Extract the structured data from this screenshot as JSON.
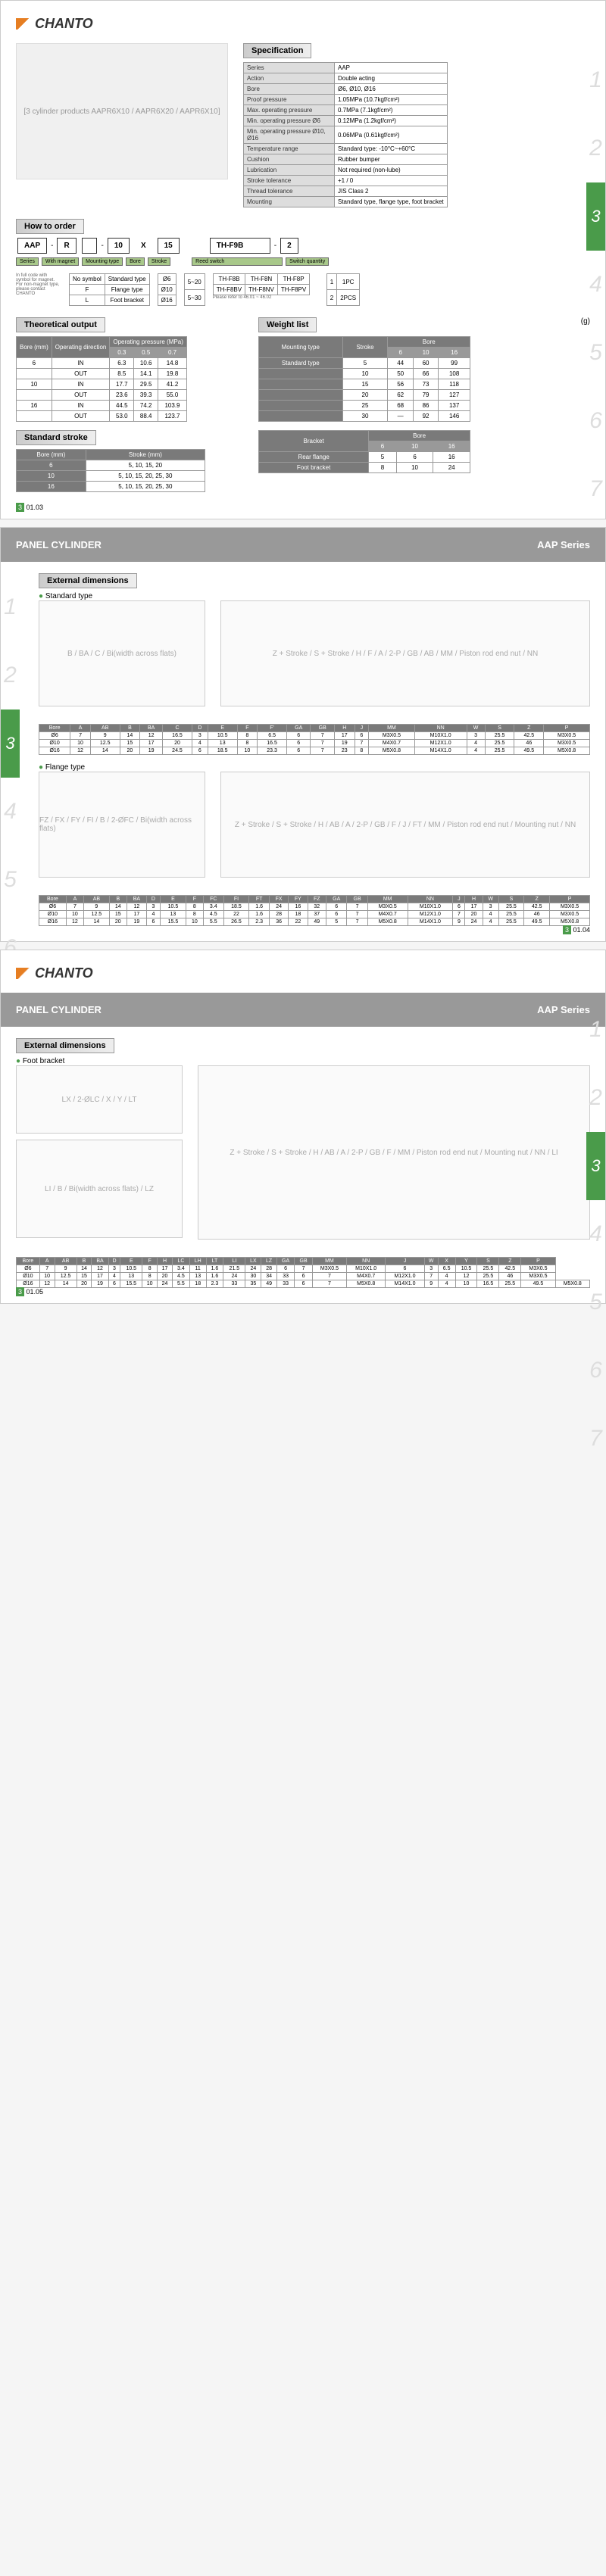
{
  "logo": "CHANTO",
  "panel_header": {
    "title": "PANEL CYLINDER",
    "series": "AAP Series"
  },
  "spec": {
    "title": "Specification",
    "rows": [
      [
        "Series",
        "AAP"
      ],
      [
        "Action",
        "Double acting"
      ],
      [
        "Bore",
        "Ø6, Ø10, Ø16"
      ],
      [
        "Proof pressure",
        "1.05MPa (10.7kgf/cm²)"
      ],
      [
        "Max. operating pressure",
        "0.7MPa (7.1kgf/cm²)"
      ],
      [
        "Min. operating pressure Ø6",
        "0.12MPa (1.2kgf/cm²)"
      ],
      [
        "Min. operating pressure Ø10, Ø16",
        "0.06MPa (0.61kgf/cm²)"
      ],
      [
        "Temperature range",
        "Standard type: -10°C~+60°C"
      ],
      [
        "Cushion",
        "Rubber bumper"
      ],
      [
        "Lubrication",
        "Not required (non-lube)"
      ],
      [
        "Stroke tolerance",
        "+1 / 0"
      ],
      [
        "Thread tolerance",
        "JIS Class 2"
      ],
      [
        "Mounting",
        "Standard type, flange type, foot bracket"
      ]
    ]
  },
  "order": {
    "title": "How to order",
    "parts": [
      "AAP",
      "R",
      "",
      "10",
      "X",
      "15",
      "",
      "TH-F9B",
      "",
      "2"
    ],
    "labels": [
      "Series",
      "With magnet",
      "Mounting type",
      "Bore",
      "Stroke",
      "Reed switch",
      "Switch quantity"
    ],
    "magnet_note": "In full code with symbol for magnet. For non-magnet type, please contact CHANTO",
    "mounting_opts": [
      [
        "No symbol",
        "Standard type"
      ],
      [
        "F",
        "Flange type"
      ],
      [
        "L",
        "Foot bracket"
      ]
    ],
    "bore_opts": [
      "Ø6",
      "Ø10",
      "Ø16"
    ],
    "stroke_opts": [
      "5~20",
      "5~30"
    ],
    "reed_opts": [
      "TH-F8B",
      "TH-F8N",
      "TH-F8P",
      "TH-F8BV",
      "TH-F8NV",
      "TH-F8PV"
    ],
    "reed_note": "Please refer to 46.01 ~ 46.02",
    "qty_opts": [
      [
        "1",
        "1PC"
      ],
      [
        "2",
        "2PCS"
      ]
    ]
  },
  "theoretical": {
    "title": "Theoretical output",
    "headers": [
      "Bore (mm)",
      "Operating direction",
      "0.3",
      "0.5",
      "0.7"
    ],
    "subhead": "Operating pressure (MPa)",
    "rows": [
      [
        "6",
        "IN",
        "6.3",
        "10.6",
        "14.8"
      ],
      [
        "",
        "OUT",
        "8.5",
        "14.1",
        "19.8"
      ],
      [
        "10",
        "IN",
        "17.7",
        "29.5",
        "41.2"
      ],
      [
        "",
        "OUT",
        "23.6",
        "39.3",
        "55.0"
      ],
      [
        "16",
        "IN",
        "44.5",
        "74.2",
        "103.9"
      ],
      [
        "",
        "OUT",
        "53.0",
        "88.4",
        "123.7"
      ]
    ]
  },
  "stroke": {
    "title": "Standard stroke",
    "headers": [
      "Bore (mm)",
      "Stroke (mm)"
    ],
    "rows": [
      [
        "6",
        "5, 10, 15, 20"
      ],
      [
        "10",
        "5, 10, 15, 20, 25, 30"
      ],
      [
        "16",
        "5, 10, 15, 20, 25, 30"
      ]
    ]
  },
  "weight": {
    "title": "Weight list",
    "unit": "(g)",
    "table1": {
      "headers": [
        "Mounting type",
        "Stroke",
        "6",
        "10",
        "16"
      ],
      "subhead": "Bore",
      "rows": [
        [
          "Standard type",
          "5",
          "44",
          "60",
          "99"
        ],
        [
          "",
          "10",
          "50",
          "66",
          "108"
        ],
        [
          "",
          "15",
          "56",
          "73",
          "118"
        ],
        [
          "",
          "20",
          "62",
          "79",
          "127"
        ],
        [
          "",
          "25",
          "68",
          "86",
          "137"
        ],
        [
          "",
          "30",
          "—",
          "92",
          "146"
        ]
      ]
    },
    "table2": {
      "headers": [
        "Bracket",
        "6",
        "10",
        "16"
      ],
      "subhead": "Bore",
      "rows": [
        [
          "Rear flange",
          "5",
          "6",
          "16"
        ],
        [
          "Foot bracket",
          "8",
          "10",
          "24"
        ]
      ]
    }
  },
  "ext_dim": {
    "title": "External dimensions",
    "standard": {
      "label": "Standard type",
      "headers": [
        "Bore",
        "A",
        "AB",
        "B",
        "BA",
        "C",
        "D",
        "E",
        "F",
        "F'",
        "GA",
        "GB",
        "H",
        "J",
        "MM",
        "NN",
        "W",
        "S",
        "Z",
        "P"
      ],
      "rows": [
        [
          "Ø6",
          "7",
          "9",
          "14",
          "12",
          "16.5",
          "3",
          "10.5",
          "8",
          "6.5",
          "6",
          "7",
          "17",
          "6",
          "M3X0.5",
          "M10X1.0",
          "3",
          "25.5",
          "42.5",
          "M3X0.5"
        ],
        [
          "Ø10",
          "10",
          "12.5",
          "15",
          "17",
          "20",
          "4",
          "13",
          "8",
          "16.5",
          "6",
          "7",
          "19",
          "7",
          "M4X0.7",
          "M12X1.0",
          "4",
          "25.5",
          "46",
          "M3X0.5"
        ],
        [
          "Ø16",
          "12",
          "14",
          "20",
          "19",
          "24.5",
          "6",
          "18.5",
          "10",
          "23.3",
          "6",
          "7",
          "23",
          "8",
          "M5X0.8",
          "M14X1.0",
          "4",
          "25.5",
          "49.5",
          "M5X0.8"
        ]
      ]
    },
    "flange": {
      "label": "Flange type",
      "headers": [
        "Bore",
        "A",
        "AB",
        "B",
        "BA",
        "D",
        "E",
        "F",
        "FC",
        "FI",
        "FT",
        "FX",
        "FY",
        "FZ",
        "GA",
        "GB",
        "MM",
        "NN",
        "J",
        "H",
        "W",
        "S",
        "Z",
        "P"
      ],
      "rows": [
        [
          "Ø6",
          "7",
          "9",
          "14",
          "12",
          "3",
          "10.5",
          "8",
          "3.4",
          "18.5",
          "1.6",
          "24",
          "16",
          "32",
          "6",
          "7",
          "M3X0.5",
          "M10X1.0",
          "6",
          "17",
          "3",
          "25.5",
          "42.5",
          "M3X0.5"
        ],
        [
          "Ø10",
          "10",
          "12.5",
          "15",
          "17",
          "4",
          "13",
          "8",
          "4.5",
          "22",
          "1.6",
          "28",
          "18",
          "37",
          "6",
          "7",
          "M4X0.7",
          "M12X1.0",
          "7",
          "20",
          "4",
          "25.5",
          "46",
          "M3X0.5"
        ],
        [
          "Ø16",
          "12",
          "14",
          "20",
          "19",
          "6",
          "15.5",
          "10",
          "5.5",
          "26.5",
          "2.3",
          "36",
          "22",
          "49",
          "5",
          "7",
          "M5X0.8",
          "M14X1.0",
          "9",
          "24",
          "4",
          "25.5",
          "49.5",
          "M5X0.8"
        ]
      ]
    },
    "foot": {
      "label": "Foot bracket",
      "headers": [
        "Bore",
        "A",
        "AB",
        "B",
        "BA",
        "D",
        "E",
        "F",
        "H",
        "LC",
        "LH",
        "LT",
        "LI",
        "LX",
        "LZ",
        "GA",
        "GB",
        "MM",
        "NN",
        "J",
        "W",
        "X",
        "Y",
        "S",
        "Z",
        "P"
      ],
      "rows": [
        [
          "Ø6",
          "7",
          "9",
          "14",
          "12",
          "3",
          "10.5",
          "8",
          "17",
          "3.4",
          "11",
          "1.6",
          "21.5",
          "24",
          "28",
          "6",
          "7",
          "M3X0.5",
          "M10X1.0",
          "6",
          "3",
          "6.5",
          "10.5",
          "25.5",
          "42.5",
          "M3X0.5"
        ],
        [
          "Ø10",
          "10",
          "12.5",
          "15",
          "17",
          "4",
          "13",
          "8",
          "20",
          "4.5",
          "13",
          "1.6",
          "24",
          "30",
          "34",
          "33",
          "6",
          "7",
          "M4X0.7",
          "M12X1.0",
          "7",
          "4",
          "12",
          "25.5",
          "46",
          "M3X0.5"
        ],
        [
          "Ø16",
          "12",
          "14",
          "20",
          "19",
          "6",
          "15.5",
          "10",
          "24",
          "5.5",
          "18",
          "2.3",
          "33",
          "35",
          "49",
          "33",
          "6",
          "7",
          "M5X0.8",
          "M14X1.0",
          "9",
          "4",
          "10",
          "16.5",
          "25.5",
          "49.5",
          "M5X0.8"
        ]
      ]
    }
  },
  "page_nums": {
    "p1": "01.03",
    "p2": "01.04",
    "p3": "01.05"
  },
  "side_nums": [
    "1",
    "2",
    "3",
    "4",
    "5",
    "6",
    "7"
  ],
  "drawing_labels": {
    "std_front": "B / BA / C / Bi(width across flats)",
    "std_side": "Z + Stroke / S + Stroke / H / F / A / 2-P / GB / AB / MM / Piston rod end nut / NN",
    "flange_front": "FZ / FX / FY / FI / B / 2-ØFC / Bi(width across flats)",
    "flange_side": "Z + Stroke / S + Stroke / H / AB / A / 2-P / GB / F / J / FT / MM / Piston rod end nut / Mounting nut / NN",
    "foot_front": "LX / 2-ØLC / X / Y / LT",
    "foot_side": "Z + Stroke / S + Stroke / H / AB / A / 2-P / GB / F / MM / Piston rod end nut / Mounting nut / NN / LI",
    "foot_bottom": "LI / B / Bi(width across flats) / LZ"
  }
}
